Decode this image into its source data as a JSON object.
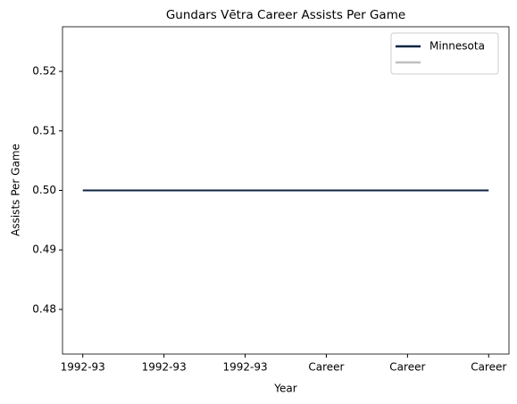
{
  "chart_data": {
    "type": "line",
    "title": "Gundars Vētra Career Assists Per Game",
    "xlabel": "Year",
    "ylabel": "Assists Per Game",
    "categories": [
      "1992-93",
      "1992-93",
      "1992-93",
      "Career",
      "Career",
      "Career"
    ],
    "series": [
      {
        "name": "Minnesota",
        "color": "#0c2340",
        "values": [
          0.5,
          0.5,
          0.5,
          0.5,
          0.5,
          0.5
        ]
      },
      {
        "name": null,
        "color": "#c0c0c0",
        "values": [
          null,
          null,
          null,
          null,
          null,
          null
        ]
      }
    ],
    "xlim": [
      -0.25,
      5.25
    ],
    "ylim": [
      0.4725,
      0.5275
    ],
    "yticks": [
      {
        "value": 0.48,
        "label": "0.48"
      },
      {
        "value": 0.49,
        "label": "0.49"
      },
      {
        "value": 0.5,
        "label": "0.50"
      },
      {
        "value": 0.51,
        "label": "0.51"
      },
      {
        "value": 0.52,
        "label": "0.52"
      }
    ],
    "grid": false,
    "legend": "upper right"
  }
}
